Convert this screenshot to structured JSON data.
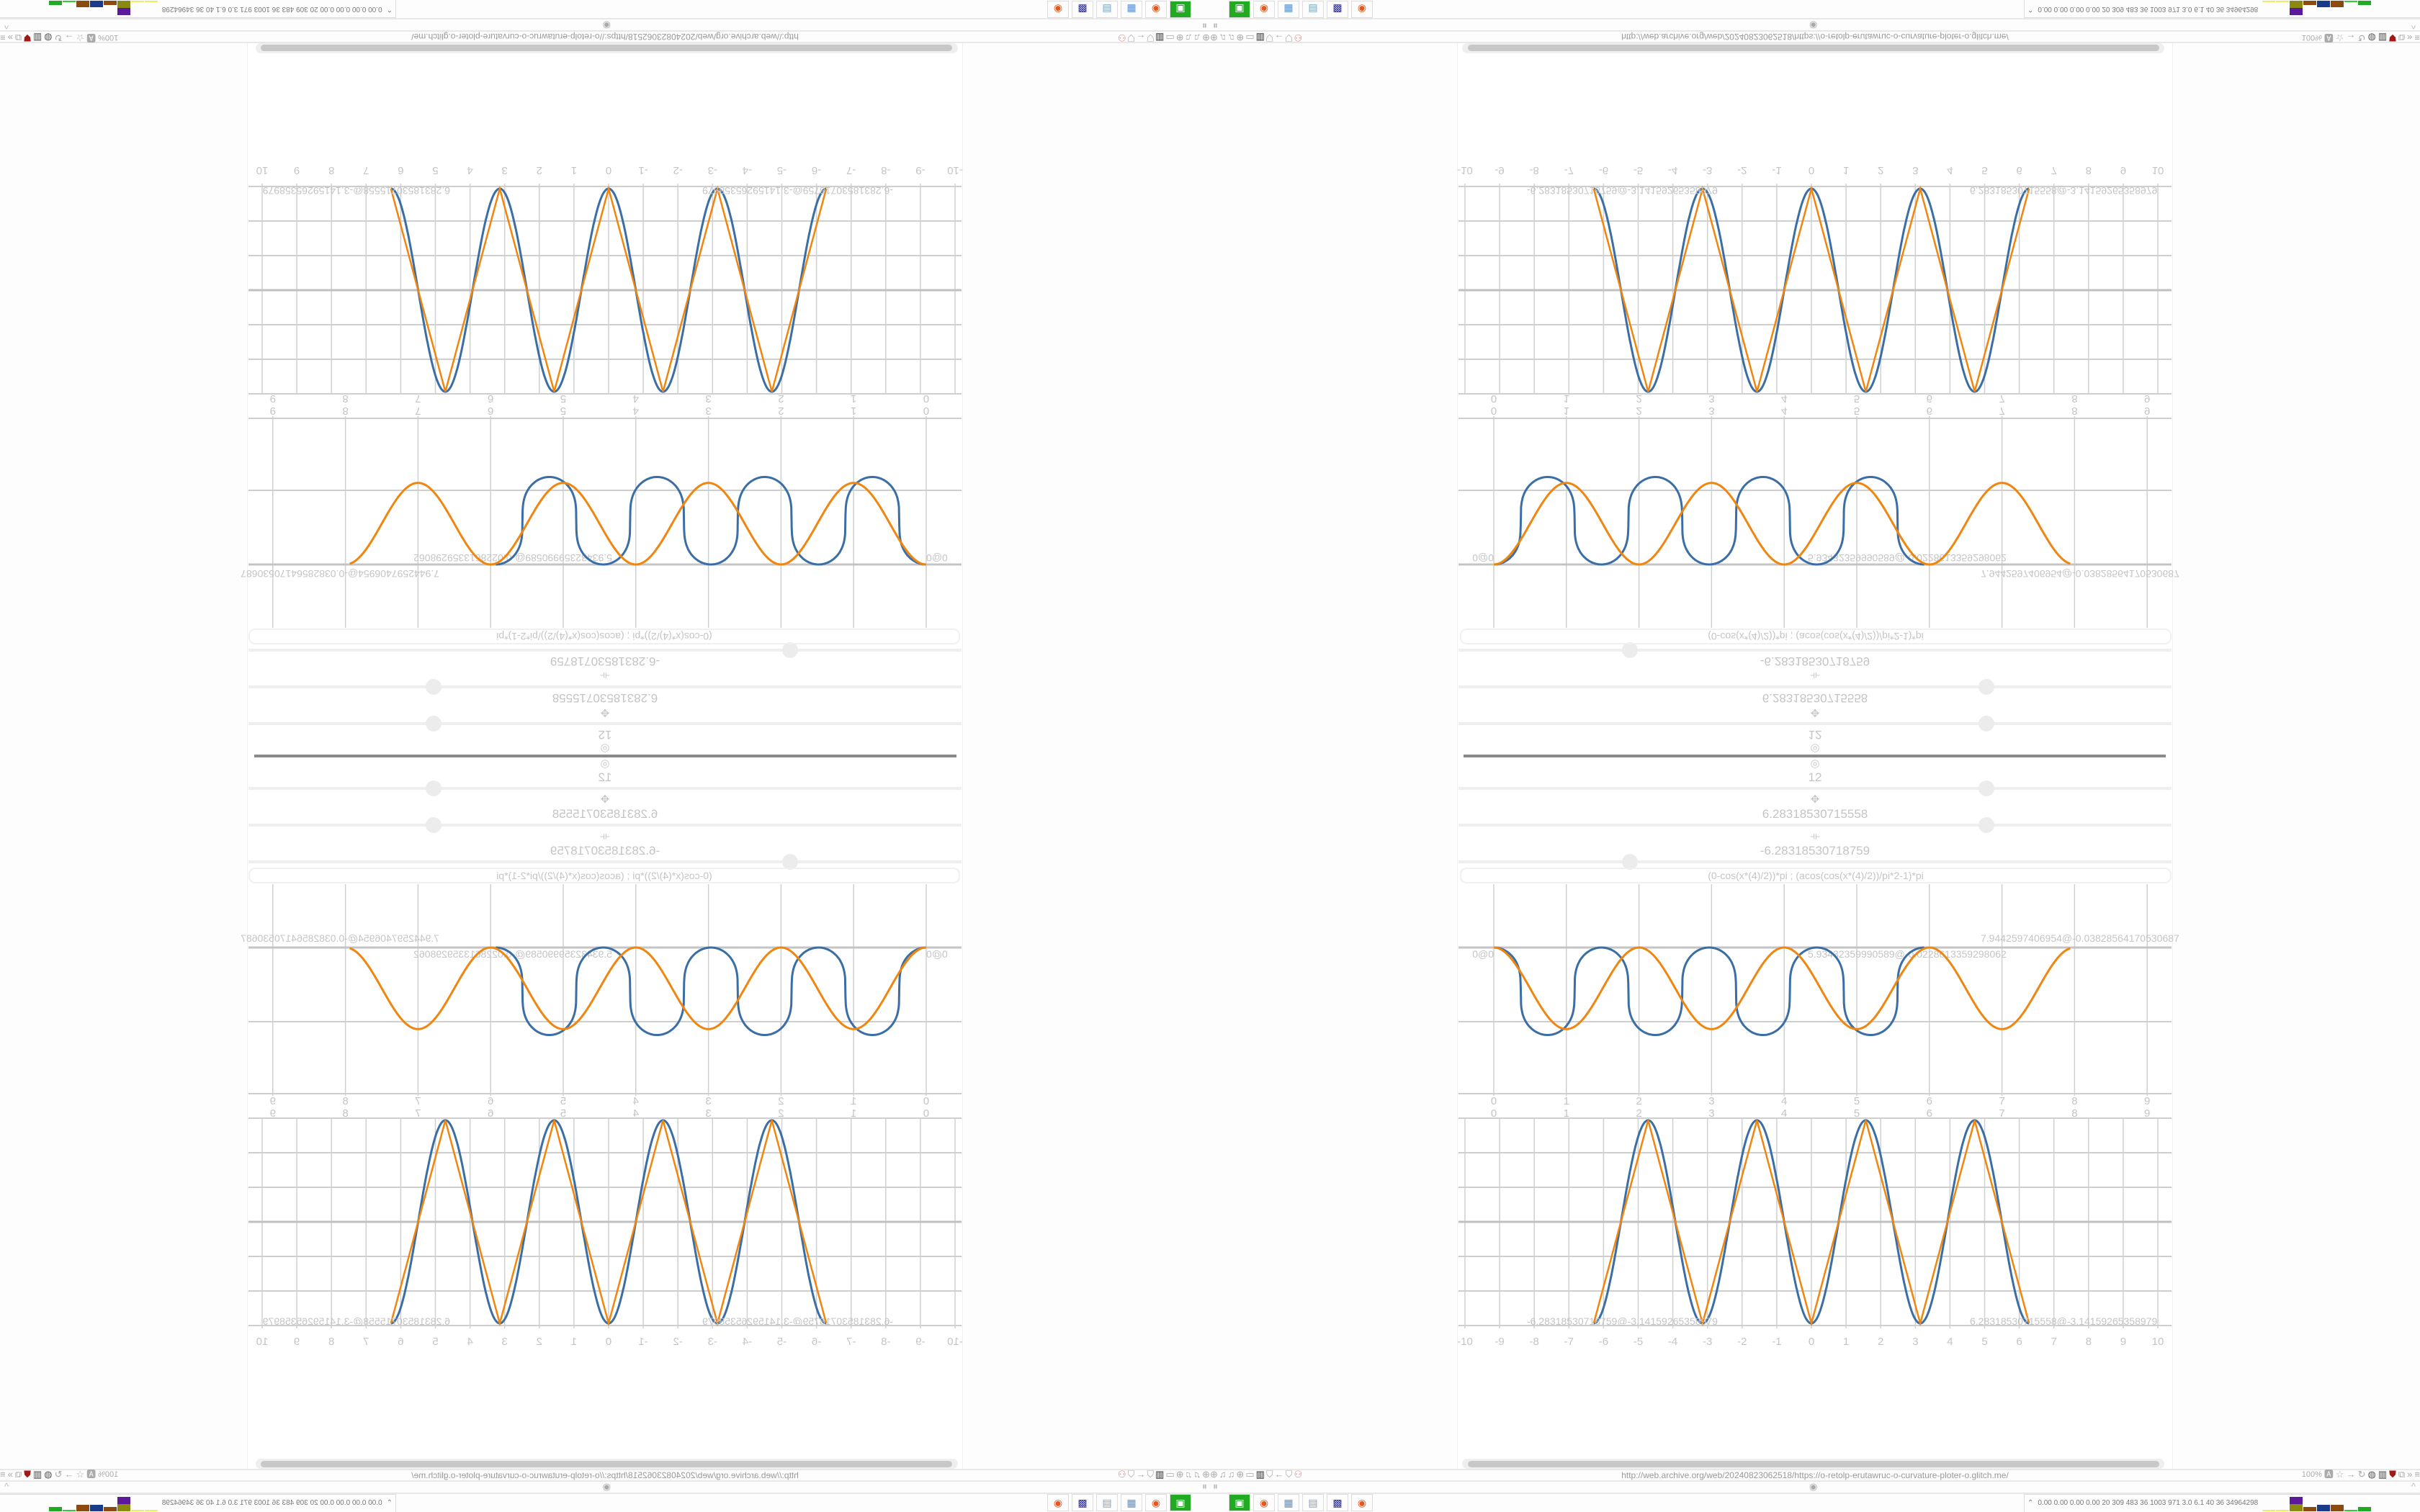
{
  "browser": {
    "url": "http://web.archive.org/web/20240823062518/https://o-retolp-erutawruc-o-curvature-ploter-o.glitch.me/",
    "zoom_level": "100%",
    "collapse_icon": "^"
  },
  "controls": [
    {
      "icon": "gear-icon",
      "glyph": "◎",
      "value": "12",
      "slider_position": 0.74
    },
    {
      "icon": "move-icon",
      "glyph": "✥",
      "value": "6.28318530715558",
      "slider_position": 0.74
    },
    {
      "icon": "width-icon",
      "glyph": "⟛",
      "value": "-6.28318530718759",
      "slider_position": 0.24
    }
  ],
  "formula": "(0-cos(x*(4)/2))*pi ; (acos(cos(x*(4)/2))/pi*2-1)*pi",
  "colors": {
    "series_blue": "#3a6ea5",
    "series_orange": "#f0860f",
    "grid": "#c8c8c8"
  },
  "chart_data": [
    {
      "type": "line",
      "x_ticks": [
        "0",
        "1",
        "2",
        "3",
        "4",
        "5",
        "6",
        "7",
        "8",
        "9"
      ],
      "grid": true,
      "point_labels": [
        "0@0",
        "5.93432359990589@-0.0228613359298062",
        "7.9442597406954@-0.03828564170530687"
      ],
      "series": [
        {
          "color": "#3a6ea5",
          "x_range": [
            0,
            5.93
          ]
        },
        {
          "color": "#f0860f",
          "x_range": [
            0,
            7.94
          ]
        }
      ]
    },
    {
      "type": "line",
      "x_ticks_top": [
        "0",
        "1",
        "2",
        "3",
        "4",
        "5",
        "6",
        "7",
        "8",
        "9"
      ],
      "x_ticks": [
        "-10",
        "-9",
        "-8",
        "-7",
        "-6",
        "-5",
        "-4",
        "-3",
        "-2",
        "-1",
        "0",
        "1",
        "2",
        "3",
        "4",
        "5",
        "6",
        "7",
        "8",
        "9",
        "10"
      ],
      "xlim": [
        -10,
        10
      ],
      "ylim": [
        -3.14159265358979,
        3.14159265358979
      ],
      "grid": true,
      "point_labels": [
        "-6.28318530718759@-3.14159265358979",
        "6.28318530715558@-3.14159265358979"
      ],
      "series": [
        {
          "color": "#3a6ea5",
          "expression": "-pi*cos(2x)",
          "x_range": [
            -6.28318530718759,
            6.28318530715558
          ]
        },
        {
          "color": "#f0860f",
          "expression": "(acos(cos(2x))/pi*2-1)*pi",
          "x_range": [
            -6.28318530718759,
            6.28318530715558
          ]
        }
      ]
    }
  ],
  "taskbar": {
    "launchers": [
      "system-monitor",
      "firefox",
      "calculator",
      "notepad",
      "floppy-64",
      "firefox"
    ],
    "tray_stats": "0.00 0.00 0.00 0.00  20  309  483  36  1003 971  3.0  6.1  40  36  34964298"
  }
}
